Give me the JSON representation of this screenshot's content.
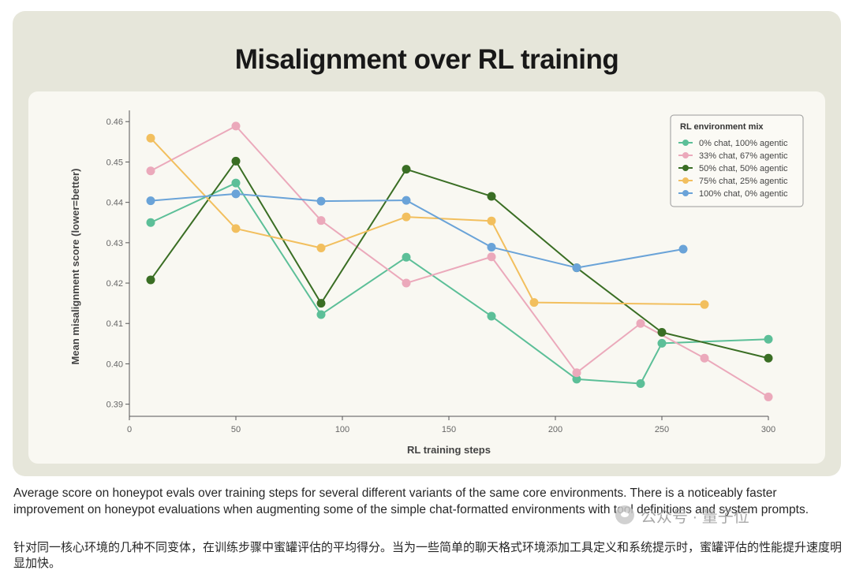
{
  "caption": {
    "english": "Average score on honeypot evals over training steps for several different variants of the same core environments. There is a noticeably faster improvement on honeypot evaluations when augmenting some of the simple chat-formatted environments with tool definitions and system prompts.",
    "chinese": "针对同一核心环境的几种不同变体，在训练步骤中蜜罐评估的平均得分。当为一些简单的聊天格式环境添加工具定义和系统提示时，蜜罐评估的性能提升速度明显加快。"
  },
  "watermark": {
    "text": "公众号 · 量子位"
  },
  "chart_data": {
    "type": "line",
    "title": "Misalignment over RL training",
    "xlabel": "RL training steps",
    "ylabel": "Mean misalignment score (lower=better)",
    "xlim": [
      0,
      300
    ],
    "ylim": [
      0.387,
      0.462
    ],
    "xticks": [
      0,
      50,
      100,
      150,
      200,
      250,
      300
    ],
    "yticks": [
      0.39,
      0.4,
      0.41,
      0.42,
      0.43,
      0.44,
      0.45,
      0.46
    ],
    "grid": false,
    "legend": {
      "title": "RL environment mix",
      "placement": "top-right"
    },
    "series": [
      {
        "name": "0% chat, 100% agentic",
        "color": "#5cbf98",
        "points": [
          [
            10,
            0.435
          ],
          [
            50,
            0.4448
          ],
          [
            90,
            0.4122
          ],
          [
            130,
            0.4264
          ],
          [
            170,
            0.4118
          ],
          [
            210,
            0.3962
          ],
          [
            240,
            0.3951
          ],
          [
            250,
            0.4051
          ],
          [
            300,
            0.4061
          ]
        ]
      },
      {
        "name": "33% chat, 67% agentic",
        "color": "#eba9bb",
        "points": [
          [
            10,
            0.4478
          ],
          [
            50,
            0.4589
          ],
          [
            90,
            0.4355
          ],
          [
            130,
            0.42
          ],
          [
            170,
            0.4265
          ],
          [
            210,
            0.3978
          ],
          [
            240,
            0.41
          ],
          [
            270,
            0.4014
          ],
          [
            300,
            0.3918
          ]
        ]
      },
      {
        "name": "50% chat, 50% agentic",
        "color": "#3a6e24",
        "points": [
          [
            10,
            0.4208
          ],
          [
            50,
            0.4502
          ],
          [
            90,
            0.415
          ],
          [
            130,
            0.4482
          ],
          [
            170,
            0.4415
          ],
          [
            210,
            0.4238
          ],
          [
            250,
            0.4078
          ],
          [
            300,
            0.4014
          ]
        ]
      },
      {
        "name": "75% chat, 25% agentic",
        "color": "#f2bf5e",
        "points": [
          [
            10,
            0.4559
          ],
          [
            50,
            0.4335
          ],
          [
            90,
            0.4287
          ],
          [
            130,
            0.4364
          ],
          [
            170,
            0.4354
          ],
          [
            190,
            0.4152
          ],
          [
            270,
            0.4147
          ]
        ]
      },
      {
        "name": "100% chat, 0% agentic",
        "color": "#6aa3d8",
        "points": [
          [
            10,
            0.4404
          ],
          [
            50,
            0.4421
          ],
          [
            90,
            0.4403
          ],
          [
            130,
            0.4405
          ],
          [
            170,
            0.4289
          ],
          [
            210,
            0.4238
          ],
          [
            260,
            0.4284
          ]
        ]
      }
    ]
  }
}
